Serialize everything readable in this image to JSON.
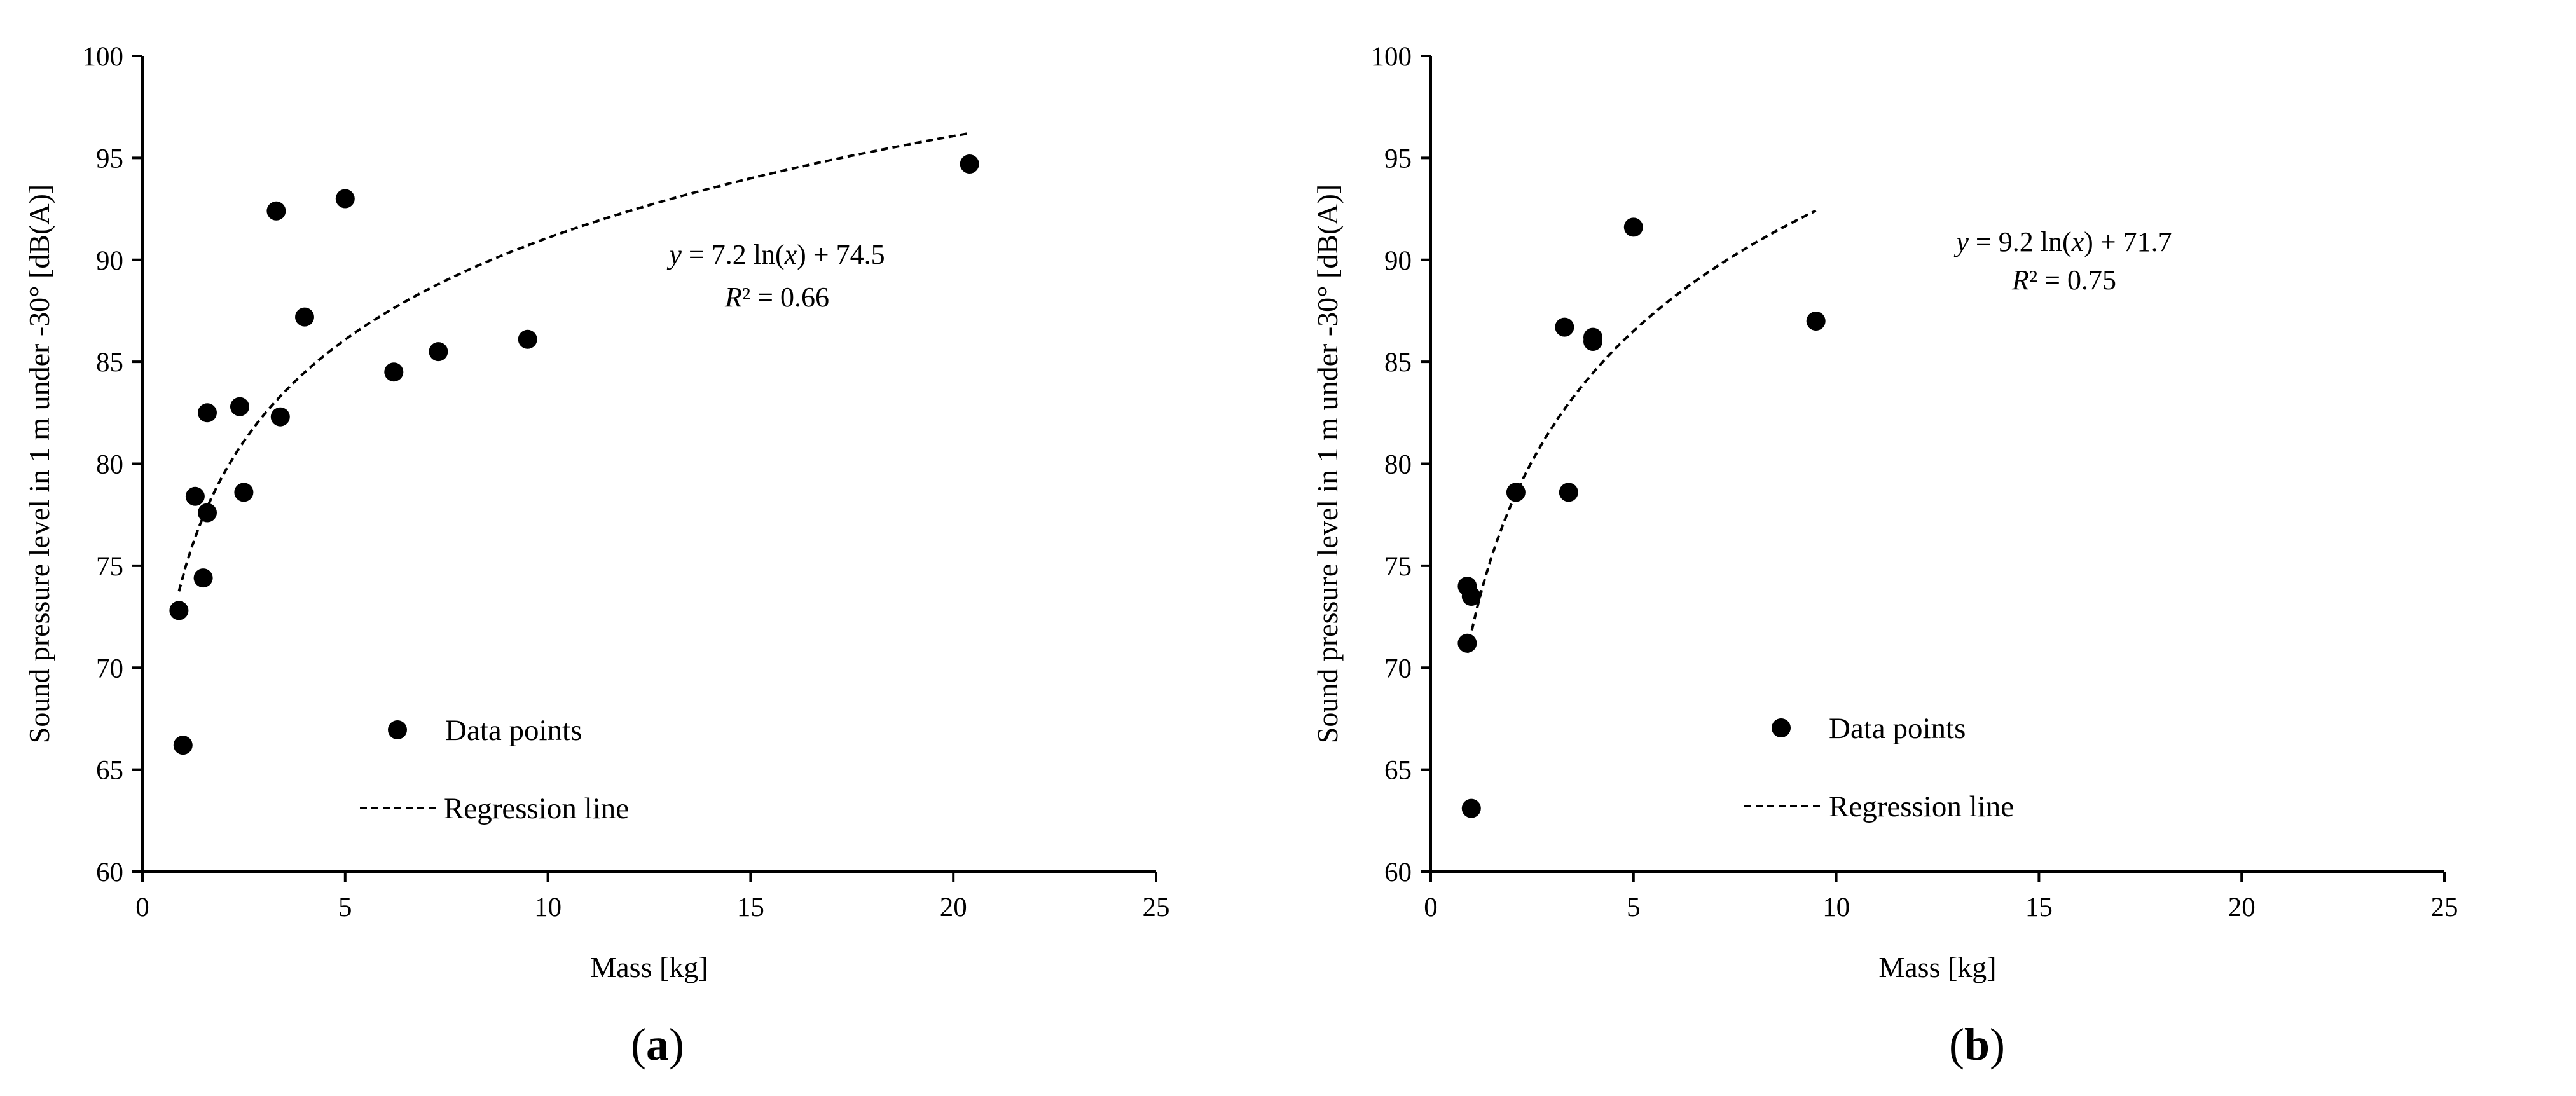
{
  "chart_data": [
    {
      "type": "scatter",
      "panel_label": "a",
      "xlabel": "Mass [kg]",
      "ylabel": "Sound pressure level in 1 m under -30° [dB(A)]",
      "xlim": [
        0,
        25
      ],
      "ylim": [
        60,
        100
      ],
      "x_ticks": [
        "0",
        "5",
        "10",
        "15",
        "20",
        "25"
      ],
      "y_ticks": [
        "60",
        "65",
        "70",
        "75",
        "80",
        "85",
        "90",
        "95",
        "100"
      ],
      "grid": false,
      "legend_position": "lower-center",
      "series": [
        {
          "name": "Data points",
          "points": [
            [
              0.9,
              72.8
            ],
            [
              1.0,
              66.2
            ],
            [
              1.3,
              78.4
            ],
            [
              1.5,
              74.4
            ],
            [
              1.6,
              77.6
            ],
            [
              1.6,
              82.5
            ],
            [
              2.4,
              82.8
            ],
            [
              2.5,
              78.6
            ],
            [
              3.3,
              92.4
            ],
            [
              3.4,
              82.3
            ],
            [
              4.0,
              87.2
            ],
            [
              5.0,
              93.0
            ],
            [
              6.2,
              84.5
            ],
            [
              7.3,
              85.5
            ],
            [
              9.5,
              86.1
            ],
            [
              20.4,
              94.7
            ]
          ]
        },
        {
          "name": "Regression line",
          "type": "line",
          "model": {
            "form": "log",
            "a": 7.2,
            "b": 74.5
          },
          "x_range": [
            0.9,
            20.4
          ]
        }
      ],
      "equation": {
        "y": "y",
        "rest": " = 7.2 ln(",
        "x": "x",
        "tail": ") + 74.5",
        "r2_label": "R",
        "r2_rest": "² = 0.66"
      }
    },
    {
      "type": "scatter",
      "panel_label": "b",
      "xlabel": "Mass [kg]",
      "ylabel": "Sound pressure level in 1 m under -30° [dB(A)]",
      "xlim": [
        0,
        25
      ],
      "ylim": [
        60,
        100
      ],
      "x_ticks": [
        "0",
        "5",
        "10",
        "15",
        "20",
        "25"
      ],
      "y_ticks": [
        "60",
        "65",
        "70",
        "75",
        "80",
        "85",
        "90",
        "95",
        "100"
      ],
      "grid": false,
      "legend_position": "lower-center",
      "series": [
        {
          "name": "Data points",
          "points": [
            [
              0.9,
              74.0
            ],
            [
              1.0,
              73.5
            ],
            [
              0.9,
              71.2
            ],
            [
              1.0,
              63.1
            ],
            [
              2.1,
              78.6
            ],
            [
              3.3,
              86.7
            ],
            [
              3.4,
              78.6
            ],
            [
              4.0,
              86.2
            ],
            [
              4.0,
              86.0
            ],
            [
              5.0,
              91.6
            ],
            [
              9.5,
              87.0
            ]
          ]
        },
        {
          "name": "Regression line",
          "type": "line",
          "model": {
            "form": "log",
            "a": 9.2,
            "b": 71.7
          },
          "x_range": [
            0.9,
            9.5
          ]
        }
      ],
      "equation": {
        "y": "y",
        "rest": " = 9.2 ln(",
        "x": "x",
        "tail": ") + 71.7",
        "r2_label": "R",
        "r2_rest": "² = 0.75"
      }
    }
  ]
}
